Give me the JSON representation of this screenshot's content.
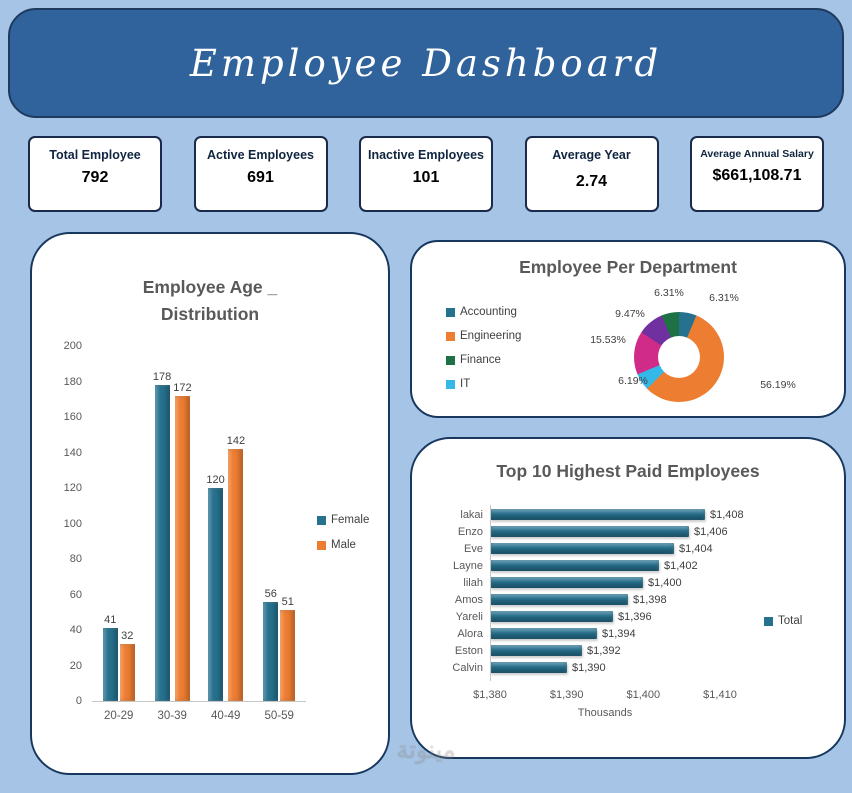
{
  "header": {
    "title": "Employee Dashboard"
  },
  "kpis": [
    {
      "label": "Total Employee",
      "value": "792"
    },
    {
      "label": "Active Employees",
      "value": "691"
    },
    {
      "label": "Inactive Employees",
      "value": "101"
    },
    {
      "label": "Average Year",
      "value": "2.74"
    },
    {
      "label": "Average Annual Salary",
      "value": "$661,108.71"
    }
  ],
  "colors": {
    "page_background": "#A6C4E5",
    "header_background": "#30639B",
    "panel_border": "#17375E",
    "chart_title": "#595959",
    "female_series": "#26718E",
    "male_series": "#ED7D31"
  },
  "watermark": {
    "text": "مينوتة"
  },
  "chart_data": [
    {
      "type": "bar",
      "title": "Employee Age _ Distribution",
      "title_lines": [
        "Employee Age _",
        "Distribution"
      ],
      "categories": [
        "20-29",
        "30-39",
        "40-49",
        "50-59"
      ],
      "series": [
        {
          "name": "Female",
          "color": "#26718E",
          "values": [
            41,
            178,
            120,
            56
          ]
        },
        {
          "name": "Male",
          "color": "#ED7D31",
          "values": [
            32,
            172,
            142,
            51
          ]
        }
      ],
      "ylim": [
        0,
        200
      ],
      "ytick_step": 20,
      "grid": false,
      "legend_position": "right"
    },
    {
      "type": "pie",
      "subtype": "donut",
      "title": "Employee Per Department",
      "legend_position": "left",
      "legend_entries": [
        {
          "name": "Accounting",
          "color": "#26718E"
        },
        {
          "name": "Engineering",
          "color": "#ED7D31"
        },
        {
          "name": "Finance",
          "color": "#1E7145"
        },
        {
          "name": "IT",
          "color": "#33B8E8"
        }
      ],
      "slices": [
        {
          "label": "6.31%",
          "value": 6.31,
          "color": "#26718E"
        },
        {
          "label": "56.19%",
          "value": 56.19,
          "color": "#ED7D31"
        },
        {
          "label": "6.19%",
          "value": 6.19,
          "color": "#33B8E8"
        },
        {
          "label": "15.53%",
          "value": 15.53,
          "color": "#D12B8A"
        },
        {
          "label": "9.47%",
          "value": 9.47,
          "color": "#7030A0"
        },
        {
          "label": "6.31%",
          "value": 6.31,
          "color": "#1E7145"
        }
      ]
    },
    {
      "type": "bar",
      "orientation": "horizontal",
      "title": "Top 10 Highest Paid Employees",
      "categories": [
        "lakai",
        "Enzo",
        "Eve",
        "Layne",
        "lilah",
        "Amos",
        "Yareli",
        "Alora",
        "Eston",
        "Calvin"
      ],
      "values": [
        1408,
        1406,
        1404,
        1402,
        1400,
        1398,
        1396,
        1394,
        1392,
        1390
      ],
      "value_labels": [
        "$1,408",
        "$1,406",
        "$1,404",
        "$1,402",
        "$1,400",
        "$1,398",
        "$1,396",
        "$1,394",
        "$1,392",
        "$1,390"
      ],
      "xlim": [
        1380,
        1410
      ],
      "xticks": [
        "$1,380",
        "$1,390",
        "$1,400",
        "$1,410"
      ],
      "xlabel": "Thousands",
      "grid": false,
      "legend_position": "right",
      "legend_entries": [
        {
          "name": "Total",
          "color": "#26718E"
        }
      ]
    }
  ]
}
